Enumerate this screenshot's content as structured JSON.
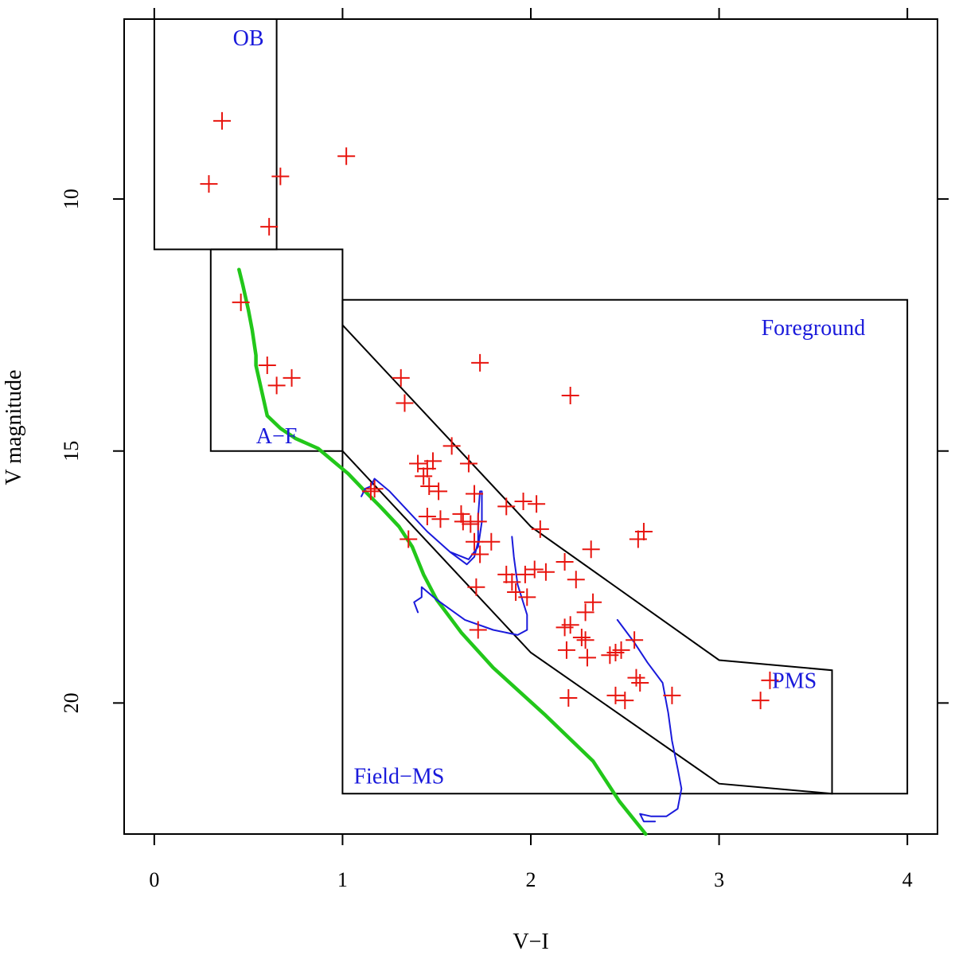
{
  "chart_data": {
    "type": "scatter",
    "title": "",
    "xlabel": "V−I",
    "ylabel": "V magnitude",
    "xlim": [
      -0.16,
      4.16
    ],
    "ylim": [
      22.6,
      6.43
    ],
    "y_inverted": true,
    "xticks": [
      0,
      1,
      2,
      3,
      4
    ],
    "yticks": [
      10,
      15,
      20
    ],
    "grid": false,
    "colors": {
      "points": "#e8150f",
      "green_curve": "#22c71a",
      "blue_curves": "#1a1adb",
      "region_lines": "#000000",
      "labels": "#1a1adb"
    },
    "region_labels": [
      {
        "text": "OB",
        "x": 0.5,
        "y": 6.95
      },
      {
        "text": "A−F",
        "x": 0.65,
        "y": 14.85
      },
      {
        "text": "Foreground",
        "x": 3.5,
        "y": 12.7
      },
      {
        "text": "PMS",
        "x": 3.4,
        "y": 19.7
      },
      {
        "text": "Field−MS",
        "x": 1.3,
        "y": 21.6
      }
    ],
    "regions": [
      {
        "name": "OB",
        "points": [
          [
            0,
            6.43
          ],
          [
            0,
            11.0
          ],
          [
            0.65,
            11.0
          ],
          [
            0.65,
            6.43
          ]
        ]
      },
      {
        "name": "A−F",
        "points": [
          [
            0.3,
            11.0
          ],
          [
            0.3,
            15.0
          ],
          [
            1.0,
            15.0
          ],
          [
            1.0,
            11.0
          ],
          [
            0.3,
            11.0
          ]
        ]
      },
      {
        "name": "Foreground",
        "points": [
          [
            1.0,
            12.0
          ],
          [
            4.0,
            12.0
          ],
          [
            4.0,
            21.8
          ],
          [
            1.0,
            21.8
          ],
          [
            1.0,
            12.0
          ]
        ]
      },
      {
        "name": "PMS",
        "points": [
          [
            1.0,
            12.5
          ],
          [
            2.0,
            16.5
          ],
          [
            3.0,
            19.15
          ],
          [
            3.6,
            19.35
          ],
          [
            3.6,
            21.8
          ],
          [
            3.0,
            21.6
          ],
          [
            2.0,
            19.0
          ],
          [
            1.0,
            15.0
          ]
        ]
      }
    ],
    "series": [
      {
        "name": "stars",
        "marker": "plus",
        "points": [
          [
            0.36,
            8.45
          ],
          [
            0.29,
            9.7
          ],
          [
            0.67,
            9.55
          ],
          [
            1.02,
            9.15
          ],
          [
            0.61,
            10.55
          ],
          [
            0.46,
            12.05
          ],
          [
            0.6,
            13.3
          ],
          [
            0.73,
            13.55
          ],
          [
            0.65,
            13.7
          ],
          [
            1.73,
            13.25
          ],
          [
            1.31,
            13.55
          ],
          [
            1.33,
            14.05
          ],
          [
            2.21,
            13.9
          ],
          [
            1.58,
            14.9
          ],
          [
            1.4,
            15.25
          ],
          [
            1.45,
            15.35
          ],
          [
            1.48,
            15.2
          ],
          [
            1.67,
            15.25
          ],
          [
            1.43,
            15.5
          ],
          [
            1.46,
            15.7
          ],
          [
            1.51,
            15.8
          ],
          [
            1.7,
            15.85
          ],
          [
            1.15,
            15.8
          ],
          [
            1.17,
            15.75
          ],
          [
            1.87,
            16.1
          ],
          [
            1.96,
            16.0
          ],
          [
            1.63,
            16.25
          ],
          [
            1.45,
            16.3
          ],
          [
            1.52,
            16.35
          ],
          [
            1.64,
            16.4
          ],
          [
            1.68,
            16.45
          ],
          [
            1.72,
            16.4
          ],
          [
            2.03,
            16.05
          ],
          [
            2.05,
            16.55
          ],
          [
            2.6,
            16.6
          ],
          [
            2.57,
            16.75
          ],
          [
            1.35,
            16.75
          ],
          [
            1.79,
            16.8
          ],
          [
            1.7,
            16.8
          ],
          [
            2.32,
            16.95
          ],
          [
            1.73,
            17.05
          ],
          [
            2.18,
            17.2
          ],
          [
            2.02,
            17.35
          ],
          [
            2.08,
            17.4
          ],
          [
            1.87,
            17.45
          ],
          [
            1.97,
            17.45
          ],
          [
            1.9,
            17.6
          ],
          [
            2.24,
            17.55
          ],
          [
            1.71,
            17.7
          ],
          [
            1.92,
            17.8
          ],
          [
            1.98,
            17.9
          ],
          [
            2.33,
            18.0
          ],
          [
            2.29,
            18.2
          ],
          [
            2.18,
            18.5
          ],
          [
            2.21,
            18.45
          ],
          [
            1.72,
            18.55
          ],
          [
            2.27,
            18.7
          ],
          [
            2.29,
            18.75
          ],
          [
            2.55,
            18.75
          ],
          [
            2.45,
            19.0
          ],
          [
            2.48,
            18.95
          ],
          [
            2.42,
            19.05
          ],
          [
            2.19,
            18.95
          ],
          [
            2.3,
            19.1
          ],
          [
            2.56,
            19.5
          ],
          [
            2.58,
            19.6
          ],
          [
            3.27,
            19.55
          ],
          [
            2.75,
            19.85
          ],
          [
            2.45,
            19.85
          ],
          [
            2.5,
            19.95
          ],
          [
            2.2,
            19.9
          ],
          [
            3.22,
            19.95
          ]
        ]
      },
      {
        "name": "green_curve",
        "type": "line",
        "points": [
          [
            0.45,
            11.4
          ],
          [
            0.47,
            11.7
          ],
          [
            0.5,
            12.2
          ],
          [
            0.52,
            12.6
          ],
          [
            0.54,
            13.1
          ],
          [
            0.54,
            13.3
          ],
          [
            0.57,
            13.8
          ],
          [
            0.6,
            14.3
          ],
          [
            0.67,
            14.55
          ],
          [
            0.75,
            14.75
          ],
          [
            0.87,
            14.95
          ],
          [
            0.95,
            15.2
          ],
          [
            1.03,
            15.45
          ],
          [
            1.12,
            15.8
          ],
          [
            1.2,
            16.1
          ],
          [
            1.3,
            16.5
          ],
          [
            1.37,
            16.9
          ],
          [
            1.43,
            17.45
          ],
          [
            1.5,
            17.95
          ],
          [
            1.63,
            18.6
          ],
          [
            1.8,
            19.3
          ],
          [
            2.08,
            20.25
          ],
          [
            2.33,
            21.15
          ],
          [
            2.47,
            21.95
          ],
          [
            2.61,
            22.6
          ]
        ]
      },
      {
        "name": "blue_isochrone_1",
        "type": "line",
        "points": [
          [
            1.1,
            15.9
          ],
          [
            1.12,
            15.75
          ],
          [
            1.15,
            15.7
          ],
          [
            1.17,
            15.55
          ],
          [
            1.25,
            15.8
          ],
          [
            1.35,
            16.2
          ],
          [
            1.45,
            16.6
          ],
          [
            1.57,
            17.0
          ],
          [
            1.67,
            17.15
          ],
          [
            1.72,
            16.9
          ],
          [
            1.74,
            16.4
          ],
          [
            1.74,
            15.8
          ],
          [
            1.73,
            15.8
          ],
          [
            1.72,
            16.3
          ],
          [
            1.72,
            16.8
          ],
          [
            1.7,
            17.1
          ],
          [
            1.66,
            17.25
          ],
          [
            1.57,
            17.0
          ]
        ]
      },
      {
        "name": "blue_isochrone_2",
        "type": "line",
        "points": [
          [
            1.4,
            18.2
          ],
          [
            1.38,
            18.0
          ],
          [
            1.42,
            17.9
          ],
          [
            1.42,
            17.7
          ],
          [
            1.5,
            17.95
          ],
          [
            1.65,
            18.35
          ],
          [
            1.8,
            18.55
          ],
          [
            1.93,
            18.65
          ],
          [
            1.98,
            18.55
          ],
          [
            1.98,
            18.25
          ],
          [
            1.93,
            17.65
          ],
          [
            1.91,
            17.1
          ],
          [
            1.9,
            16.7
          ]
        ]
      },
      {
        "name": "blue_isochrone_3",
        "type": "line",
        "points": [
          [
            2.46,
            18.35
          ],
          [
            2.55,
            18.8
          ],
          [
            2.62,
            19.2
          ],
          [
            2.7,
            19.6
          ],
          [
            2.73,
            20.2
          ],
          [
            2.75,
            20.75
          ],
          [
            2.78,
            21.3
          ],
          [
            2.8,
            21.7
          ],
          [
            2.78,
            22.1
          ],
          [
            2.72,
            22.25
          ],
          [
            2.64,
            22.25
          ],
          [
            2.58,
            22.2
          ],
          [
            2.6,
            22.35
          ],
          [
            2.66,
            22.35
          ]
        ]
      }
    ]
  }
}
